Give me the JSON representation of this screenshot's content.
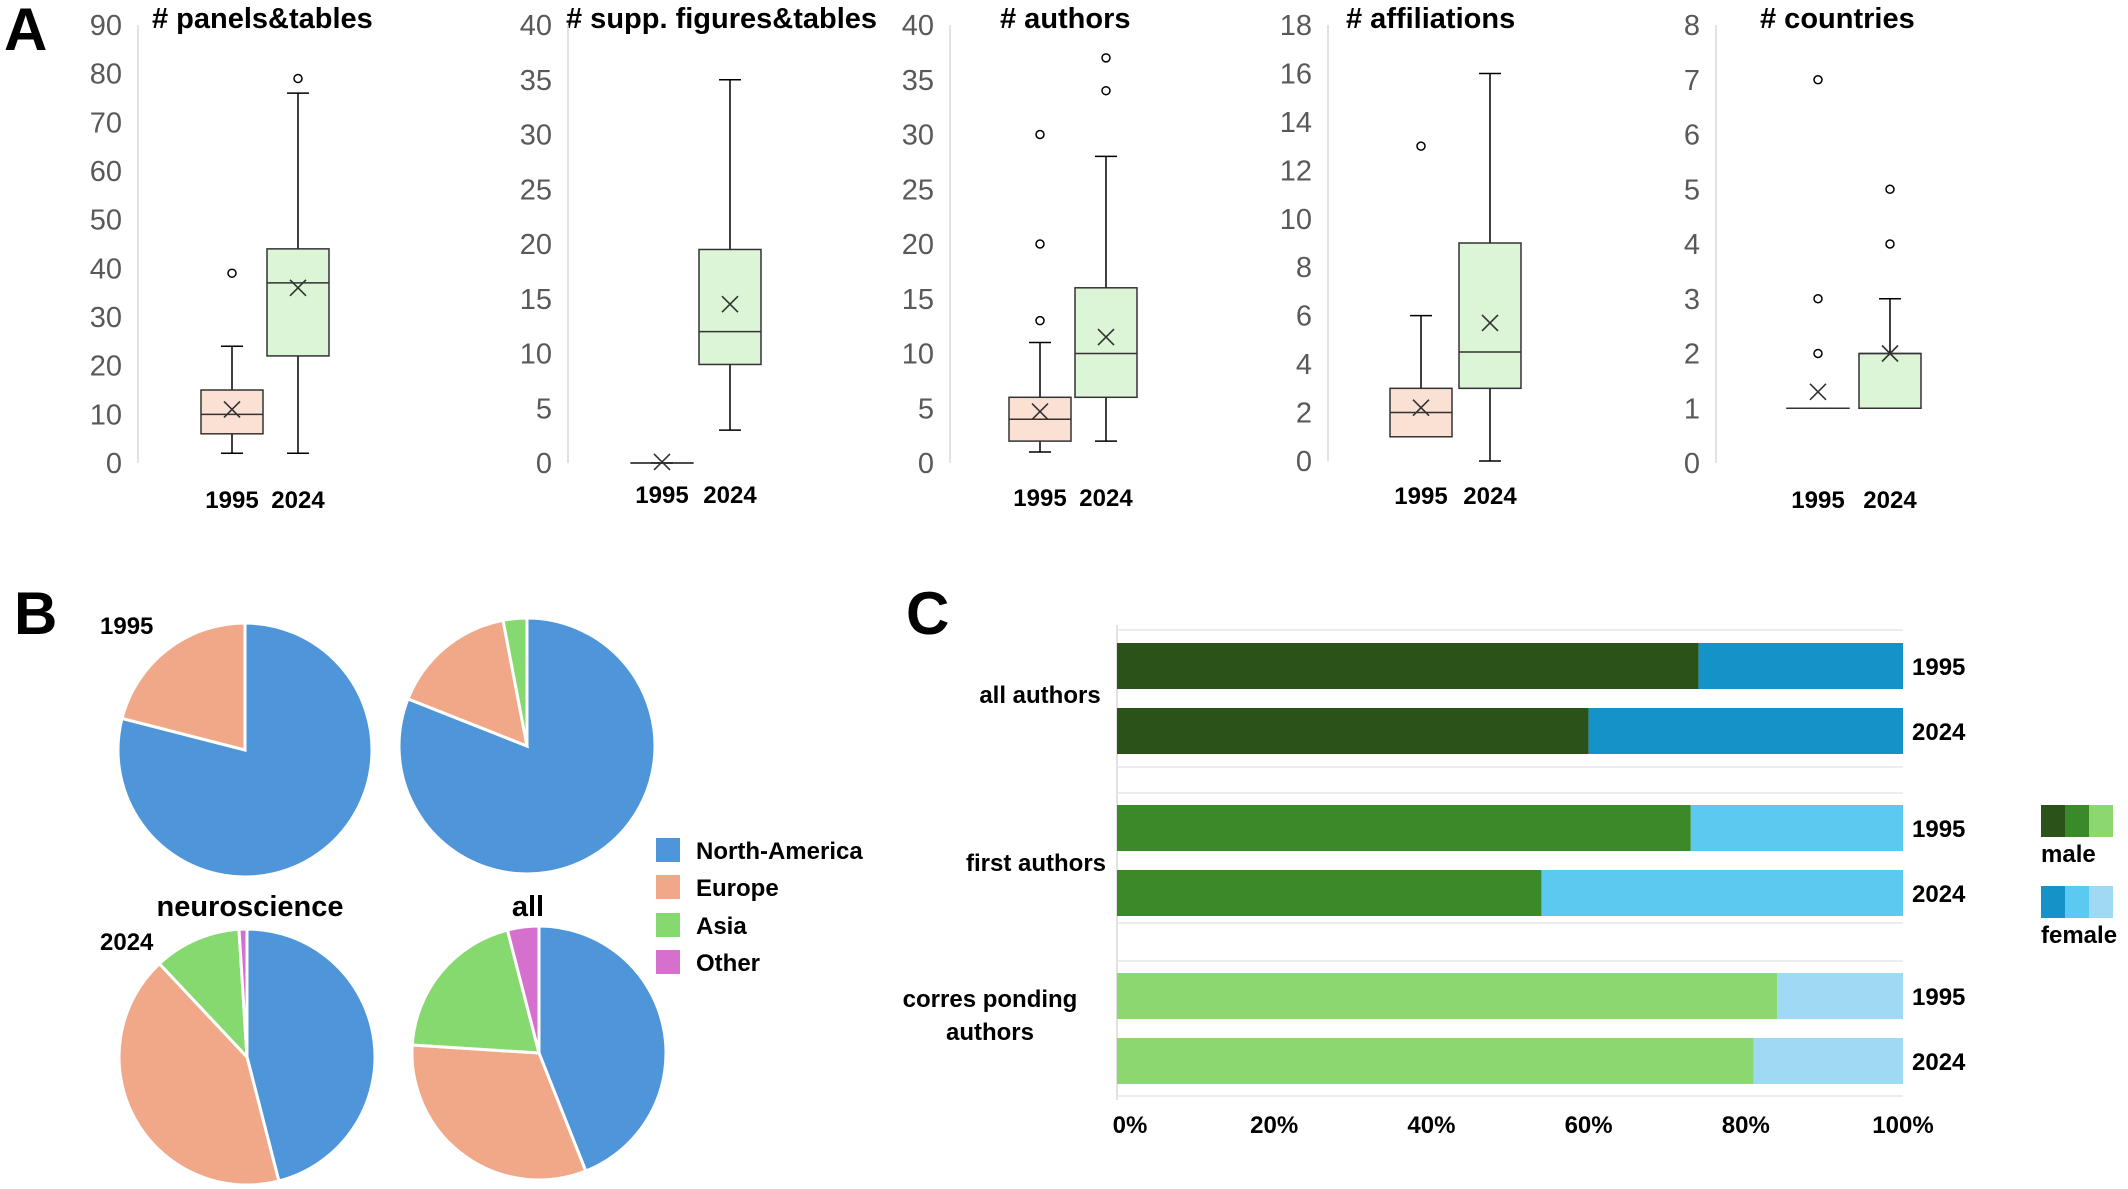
{
  "panel_letters": [
    "A",
    "B",
    "C"
  ],
  "colors": {
    "box_1995": "#fbe0d4",
    "box_1995_border": "#7a7a7a",
    "box_2024": "#dcf5d6",
    "box_2024_border": "#555555",
    "axis_text": "#595959",
    "north_america": "#4f95d9",
    "europe": "#f0a888",
    "asia": "#86d96e",
    "other": "#d670cf",
    "male_all": "#2b5319",
    "male_first": "#3a8a2a",
    "male_corr": "#8cd76f",
    "female_all": "#1493c9",
    "female_first": "#5ccaf0",
    "female_corr": "#9fdaf4"
  },
  "chart_data": [
    {
      "type": "box",
      "title": "# panels&tables",
      "categories": [
        "1995",
        "2024"
      ],
      "ylim": [
        0,
        90
      ],
      "yticks": [
        0,
        10,
        20,
        30,
        40,
        50,
        60,
        70,
        80,
        90
      ],
      "boxes": [
        {
          "category": "1995",
          "min": 2,
          "q1": 6,
          "median": 10,
          "q3": 15,
          "max": 24,
          "mean": 11,
          "outliers": [
            39
          ]
        },
        {
          "category": "2024",
          "min": 2,
          "q1": 22,
          "median": 37,
          "q3": 44,
          "max": 76,
          "mean": 36,
          "outliers": [
            79
          ]
        }
      ]
    },
    {
      "type": "box",
      "title": "# supp. figures&tables",
      "categories": [
        "1995",
        "2024"
      ],
      "ylim": [
        0,
        40
      ],
      "yticks": [
        0,
        5,
        10,
        15,
        20,
        25,
        30,
        35,
        40
      ],
      "boxes": [
        {
          "category": "1995",
          "min": 0,
          "q1": 0,
          "median": 0,
          "q3": 0,
          "max": 0,
          "mean": 0.1,
          "outliers": []
        },
        {
          "category": "2024",
          "min": 3,
          "q1": 9,
          "median": 12,
          "q3": 19.5,
          "max": 35,
          "mean": 14.5,
          "outliers": []
        }
      ]
    },
    {
      "type": "box",
      "title": "# authors",
      "categories": [
        "1995",
        "2024"
      ],
      "ylim": [
        0,
        40
      ],
      "yticks": [
        0,
        5,
        10,
        15,
        20,
        25,
        30,
        35,
        40
      ],
      "boxes": [
        {
          "category": "1995",
          "min": 1,
          "q1": 2,
          "median": 4,
          "q3": 6,
          "max": 11,
          "mean": 4.7,
          "outliers": [
            13,
            20,
            30
          ]
        },
        {
          "category": "2024",
          "min": 2,
          "q1": 6,
          "median": 10,
          "q3": 16,
          "max": 28,
          "mean": 11.5,
          "outliers": [
            34,
            37
          ]
        }
      ]
    },
    {
      "type": "box",
      "title": "# affiliations",
      "categories": [
        "1995",
        "2024"
      ],
      "ylim": [
        0,
        18
      ],
      "yticks": [
        0,
        2,
        4,
        6,
        8,
        10,
        12,
        14,
        16,
        18
      ],
      "boxes": [
        {
          "category": "1995",
          "min": 1,
          "q1": 1,
          "median": 2,
          "q3": 3,
          "max": 6,
          "mean": 2.2,
          "outliers": [
            13
          ]
        },
        {
          "category": "2024",
          "min": 0,
          "q1": 3,
          "median": 4.5,
          "q3": 9,
          "max": 16,
          "mean": 5.7,
          "outliers": []
        }
      ]
    },
    {
      "type": "box",
      "title": "# countries",
      "categories": [
        "1995",
        "2024"
      ],
      "ylim": [
        0,
        8
      ],
      "yticks": [
        0,
        1,
        2,
        3,
        4,
        5,
        6,
        7,
        8
      ],
      "boxes": [
        {
          "category": "1995",
          "min": 1,
          "q1": 1,
          "median": 1,
          "q3": 1,
          "max": 1,
          "mean": 1.3,
          "outliers": [
            2,
            3,
            7
          ]
        },
        {
          "category": "2024",
          "min": 1,
          "q1": 1,
          "median": 2,
          "q3": 2,
          "max": 3,
          "mean": 2,
          "outliers": [
            4,
            5
          ]
        }
      ]
    },
    {
      "type": "pie",
      "group": "neuroscience",
      "year": "1995",
      "slices": [
        {
          "name": "North-America",
          "value": 79
        },
        {
          "name": "Europe",
          "value": 21
        }
      ]
    },
    {
      "type": "pie",
      "group": "all",
      "year": "1995",
      "slices": [
        {
          "name": "North-America",
          "value": 81
        },
        {
          "name": "Europe",
          "value": 16
        },
        {
          "name": "Asia",
          "value": 3
        }
      ]
    },
    {
      "type": "pie",
      "group": "neuroscience",
      "year": "2024",
      "slices": [
        {
          "name": "North-America",
          "value": 46
        },
        {
          "name": "Europe",
          "value": 42
        },
        {
          "name": "Asia",
          "value": 11
        },
        {
          "name": "Other",
          "value": 1
        }
      ]
    },
    {
      "type": "pie",
      "group": "all",
      "year": "2024",
      "slices": [
        {
          "name": "North-America",
          "value": 44
        },
        {
          "name": "Europe",
          "value": 32
        },
        {
          "name": "Asia",
          "value": 20
        },
        {
          "name": "Other",
          "value": 4
        }
      ]
    },
    {
      "type": "stacked_bar",
      "orientation": "horizontal",
      "xticks": [
        "0%",
        "20%",
        "40%",
        "60%",
        "80%",
        "100%"
      ],
      "xlim": [
        0,
        100
      ],
      "groups": [
        {
          "label": "all authors",
          "rows": [
            {
              "year": "1995",
              "male": 74,
              "female": 26
            },
            {
              "year": "2024",
              "male": 60,
              "female": 40
            }
          ]
        },
        {
          "label": "first authors",
          "rows": [
            {
              "year": "1995",
              "male": 73,
              "female": 27
            },
            {
              "year": "2024",
              "male": 54,
              "female": 46
            }
          ]
        },
        {
          "label": "corresponding authors",
          "rows": [
            {
              "year": "1995",
              "male": 84,
              "female": 16
            },
            {
              "year": "2024",
              "male": 81,
              "female": 19
            }
          ]
        }
      ]
    }
  ],
  "panel_b": {
    "year_1995": "1995",
    "year_2024": "2024",
    "label_neuroscience": "neuroscience",
    "label_all": "all",
    "legend": [
      "North-America",
      "Europe",
      "Asia",
      "Other"
    ]
  },
  "panel_c": {
    "legend_male": "male",
    "legend_female": "female",
    "group_label_lines": [
      [
        "all authors"
      ],
      [
        "first authors"
      ],
      [
        "corres ponding",
        "authors"
      ]
    ]
  }
}
